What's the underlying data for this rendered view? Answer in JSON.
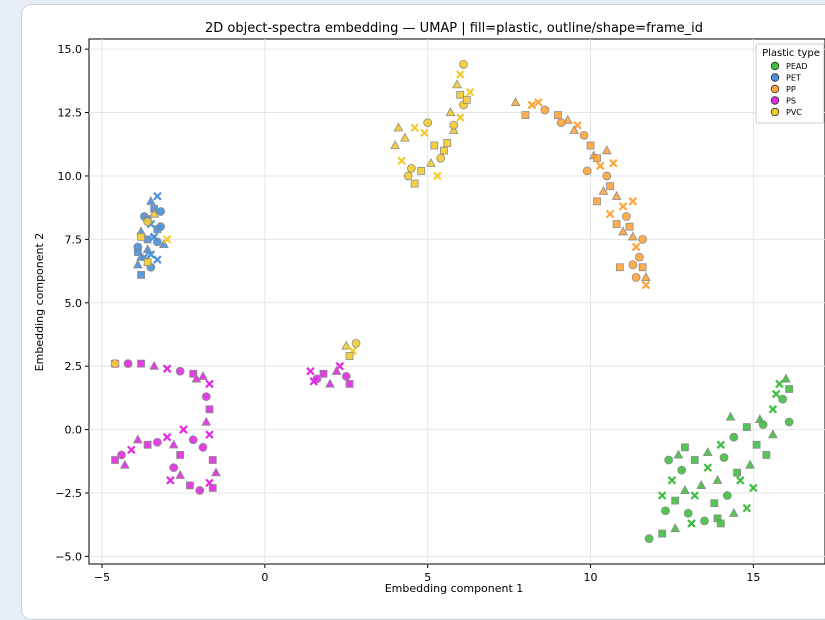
{
  "chart_data": {
    "type": "scatter",
    "title": "2D object-spectra embedding — UMAP | fill=plastic, outline/shape=frame_id",
    "xlabel": "Embedding component 1",
    "ylabel": "Embedding component 2",
    "xlim": [
      -5.4,
      17.2
    ],
    "ylim": [
      -5.3,
      15.4
    ],
    "xticks": [
      -5,
      0,
      5,
      10,
      15
    ],
    "yticks": [
      -5.0,
      -2.5,
      0.0,
      2.5,
      5.0,
      7.5,
      10.0,
      12.5,
      15.0
    ],
    "xtick_labels": [
      "−5",
      "0",
      "5",
      "10",
      "15"
    ],
    "ytick_labels": [
      "−5.0",
      "−2.5",
      "0.0",
      "2.5",
      "5.0",
      "7.5",
      "10.0",
      "12.5",
      "15.0"
    ],
    "grid": true,
    "legend": {
      "title": "Plastic type",
      "placement": "top-right",
      "entries": [
        "PEAD",
        "PET",
        "PP",
        "PS",
        "PVC"
      ]
    },
    "colors": {
      "PEAD": "#3fbf3f",
      "PET": "#4a90d9",
      "PP": "#ffa43a",
      "PS": "#e02be0",
      "PVC": "#f2cc2e"
    },
    "series": [
      {
        "name": "PEAD",
        "points": [
          [
            11.8,
            -4.3
          ],
          [
            12.2,
            -4.1
          ],
          [
            12.6,
            -3.9
          ],
          [
            13.1,
            -3.7
          ],
          [
            13.5,
            -3.6
          ],
          [
            13.9,
            -3.5
          ],
          [
            14.4,
            -3.3
          ],
          [
            14.8,
            -3.1
          ],
          [
            12.3,
            -3.2
          ],
          [
            12.6,
            -2.8
          ],
          [
            12.9,
            -2.4
          ],
          [
            12.5,
            -2.0
          ],
          [
            12.8,
            -1.6
          ],
          [
            13.2,
            -1.2
          ],
          [
            13.6,
            -0.9
          ],
          [
            14.0,
            -0.6
          ],
          [
            14.4,
            -0.3
          ],
          [
            14.8,
            0.1
          ],
          [
            15.2,
            0.4
          ],
          [
            15.6,
            0.8
          ],
          [
            15.9,
            1.2
          ],
          [
            16.1,
            1.6
          ],
          [
            16.0,
            2.0
          ],
          [
            15.7,
            1.4
          ],
          [
            15.3,
            0.2
          ],
          [
            15.1,
            -0.6
          ],
          [
            14.9,
            -1.4
          ],
          [
            14.6,
            -2.0
          ],
          [
            14.2,
            -2.6
          ],
          [
            13.8,
            -2.9
          ],
          [
            13.4,
            -2.2
          ],
          [
            13.6,
            -1.5
          ],
          [
            14.1,
            -1.1
          ],
          [
            14.5,
            -1.7
          ],
          [
            13.9,
            -2.0
          ],
          [
            13.2,
            -2.6
          ],
          [
            12.4,
            -1.2
          ],
          [
            12.9,
            -0.7
          ],
          [
            15.6,
            -0.2
          ],
          [
            15.0,
            -2.3
          ],
          [
            16.1,
            0.3
          ],
          [
            15.4,
            -1.0
          ],
          [
            14.3,
            0.5
          ],
          [
            12.2,
            -2.6
          ],
          [
            13.0,
            -3.3
          ],
          [
            14.0,
            -3.7
          ],
          [
            12.7,
            -1.0
          ],
          [
            15.8,
            1.8
          ]
        ]
      },
      {
        "name": "PET",
        "points": [
          [
            -3.8,
            6.1
          ],
          [
            -3.9,
            6.5
          ],
          [
            -3.7,
            6.8
          ],
          [
            -3.9,
            7.2
          ],
          [
            -3.6,
            7.5
          ],
          [
            -3.8,
            7.8
          ],
          [
            -3.5,
            8.1
          ],
          [
            -3.7,
            8.4
          ],
          [
            -3.4,
            8.7
          ],
          [
            -3.5,
            9.0
          ],
          [
            -3.3,
            9.2
          ],
          [
            -3.2,
            8.6
          ],
          [
            -3.3,
            7.9
          ],
          [
            -3.1,
            7.3
          ],
          [
            -3.3,
            6.7
          ],
          [
            -3.5,
            6.4
          ],
          [
            -3.9,
            7.0
          ],
          [
            -3.6,
            7.1
          ],
          [
            -3.4,
            7.6
          ],
          [
            -3.2,
            8.0
          ],
          [
            -3.6,
            8.3
          ],
          [
            -3.8,
            6.8
          ],
          [
            -3.5,
            6.9
          ],
          [
            -3.3,
            7.4
          ]
        ]
      },
      {
        "name": "PP",
        "points": [
          [
            7.7,
            12.9
          ],
          [
            8.2,
            12.8
          ],
          [
            8.6,
            12.6
          ],
          [
            9.0,
            12.4
          ],
          [
            9.3,
            12.2
          ],
          [
            9.6,
            12.0
          ],
          [
            9.8,
            11.6
          ],
          [
            10.0,
            11.2
          ],
          [
            10.1,
            10.8
          ],
          [
            10.3,
            10.4
          ],
          [
            10.5,
            10.0
          ],
          [
            10.6,
            9.6
          ],
          [
            10.8,
            9.2
          ],
          [
            11.0,
            8.8
          ],
          [
            11.1,
            8.4
          ],
          [
            11.2,
            8.0
          ],
          [
            11.3,
            7.6
          ],
          [
            11.4,
            7.2
          ],
          [
            11.5,
            6.8
          ],
          [
            11.6,
            6.4
          ],
          [
            11.7,
            6.0
          ],
          [
            11.7,
            5.7
          ],
          [
            11.3,
            6.5
          ],
          [
            10.9,
            6.4
          ],
          [
            10.4,
            9.4
          ],
          [
            10.7,
            10.5
          ],
          [
            9.9,
            10.2
          ],
          [
            10.2,
            9.0
          ],
          [
            11.0,
            7.8
          ],
          [
            10.6,
            8.5
          ],
          [
            9.1,
            12.1
          ],
          [
            8.0,
            12.4
          ],
          [
            10.5,
            11.0
          ],
          [
            11.3,
            9.0
          ],
          [
            11.6,
            7.5
          ],
          [
            10.2,
            10.7
          ],
          [
            9.5,
            11.8
          ],
          [
            8.4,
            12.9
          ],
          [
            11.4,
            6.0
          ],
          [
            10.8,
            8.1
          ]
        ]
      },
      {
        "name": "PS",
        "points": [
          [
            -4.6,
            2.6
          ],
          [
            -4.2,
            2.6
          ],
          [
            -3.8,
            2.6
          ],
          [
            -3.4,
            2.5
          ],
          [
            -3.0,
            2.4
          ],
          [
            -2.6,
            2.3
          ],
          [
            -2.2,
            2.2
          ],
          [
            -1.9,
            2.1
          ],
          [
            -1.7,
            1.8
          ],
          [
            -1.8,
            1.3
          ],
          [
            -1.7,
            0.8
          ],
          [
            -1.8,
            0.3
          ],
          [
            -1.7,
            -0.2
          ],
          [
            -1.9,
            -0.7
          ],
          [
            -1.6,
            -1.2
          ],
          [
            -1.5,
            -1.7
          ],
          [
            -1.7,
            -2.1
          ],
          [
            -2.0,
            -2.4
          ],
          [
            -2.3,
            -2.2
          ],
          [
            -2.6,
            -1.8
          ],
          [
            -2.9,
            -2.0
          ],
          [
            -2.8,
            -1.5
          ],
          [
            -2.6,
            -1.0
          ],
          [
            -2.8,
            -0.6
          ],
          [
            -3.0,
            -0.3
          ],
          [
            -3.3,
            -0.5
          ],
          [
            -3.6,
            -0.6
          ],
          [
            -3.9,
            -0.4
          ],
          [
            -4.1,
            -0.8
          ],
          [
            -4.4,
            -1.0
          ],
          [
            -4.6,
            -1.2
          ],
          [
            -4.3,
            -1.4
          ],
          [
            -2.5,
            0.0
          ],
          [
            -2.2,
            -0.4
          ],
          [
            -1.6,
            -2.3
          ],
          [
            -2.1,
            2.0
          ],
          [
            1.4,
            2.3
          ],
          [
            1.6,
            2.0
          ],
          [
            1.8,
            2.2
          ],
          [
            2.0,
            1.8
          ],
          [
            2.3,
            2.5
          ],
          [
            2.5,
            2.1
          ],
          [
            2.6,
            1.8
          ],
          [
            2.2,
            2.3
          ],
          [
            1.5,
            1.9
          ]
        ]
      },
      {
        "name": "PVC",
        "points": [
          [
            -4.6,
            2.6
          ],
          [
            -3.6,
            6.6
          ],
          [
            -3.4,
            8.5
          ],
          [
            -3.0,
            7.5
          ],
          [
            -3.6,
            8.2
          ],
          [
            -3.8,
            7.6
          ],
          [
            2.5,
            3.3
          ],
          [
            2.7,
            3.1
          ],
          [
            2.8,
            3.4
          ],
          [
            2.6,
            2.9
          ],
          [
            4.0,
            11.2
          ],
          [
            4.2,
            10.6
          ],
          [
            4.4,
            10.0
          ],
          [
            4.6,
            9.7
          ],
          [
            4.3,
            11.5
          ],
          [
            4.6,
            11.9
          ],
          [
            5.0,
            12.1
          ],
          [
            5.2,
            11.2
          ],
          [
            5.1,
            10.5
          ],
          [
            5.3,
            10.0
          ],
          [
            5.4,
            10.7
          ],
          [
            5.6,
            11.3
          ],
          [
            5.8,
            11.8
          ],
          [
            6.0,
            12.3
          ],
          [
            6.1,
            12.8
          ],
          [
            6.0,
            13.2
          ],
          [
            5.9,
            13.6
          ],
          [
            6.0,
            14.0
          ],
          [
            6.1,
            14.4
          ],
          [
            6.2,
            13.0
          ],
          [
            5.7,
            12.5
          ],
          [
            4.9,
            11.7
          ],
          [
            4.5,
            10.3
          ],
          [
            5.5,
            11.0
          ],
          [
            4.1,
            11.9
          ],
          [
            6.3,
            13.3
          ],
          [
            5.8,
            12.0
          ],
          [
            4.8,
            10.2
          ]
        ]
      }
    ]
  }
}
